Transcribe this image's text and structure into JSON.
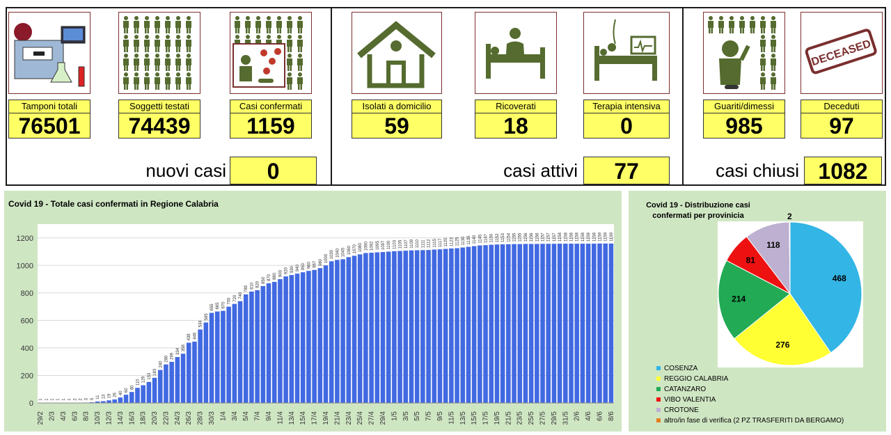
{
  "cards": [
    {
      "label": "Tamponi totali",
      "value": "76501",
      "icon": "lab-equipment-icon"
    },
    {
      "label": "Soggetti testati",
      "value": "74439",
      "icon": "people-grid-icon"
    },
    {
      "label": "Casi confermati",
      "value": "1159",
      "icon": "virus-person-icon"
    },
    {
      "label": "Isolati a domicilio",
      "value": "59",
      "icon": "house-icon"
    },
    {
      "label": "Ricoverati",
      "value": "18",
      "icon": "hospital-bed-icon"
    },
    {
      "label": "Terapia intensiva",
      "value": "0",
      "icon": "intensive-care-icon"
    },
    {
      "label": "Guariti/dimessi",
      "value": "985",
      "icon": "recovered-person-icon"
    },
    {
      "label": "Deceduti",
      "value": "97",
      "icon": "deceased-stamp-icon"
    }
  ],
  "deceased_stamp_text": "DECEASED",
  "summaries": [
    {
      "label": "nuovi casi",
      "value": "0"
    },
    {
      "label": "casi attivi",
      "value": "77"
    },
    {
      "label": "casi chiusi",
      "value": "1082"
    }
  ],
  "colors": {
    "accent_yellow": "#ffff66",
    "icon_green": "#556b2f",
    "bar_blue": "#4169e1",
    "panel_bg": "#cfe6c3"
  },
  "chart_data": [
    {
      "type": "bar",
      "title": "Covid 19 - Totale casi confermati in Regione Calabria",
      "xlabel": "",
      "ylabel": "",
      "ylim": [
        0,
        1300
      ],
      "yticks": [
        0,
        200,
        400,
        600,
        800,
        1000,
        1200
      ],
      "grid": true,
      "categories": [
        "29/2",
        "1/3",
        "2/3",
        "3/3",
        "4/3",
        "5/3",
        "6/3",
        "7/3",
        "8/3",
        "9/3",
        "10/3",
        "11/3",
        "12/3",
        "13/3",
        "14/3",
        "15/3",
        "16/3",
        "17/3",
        "18/3",
        "19/3",
        "20/3",
        "21/3",
        "22/3",
        "23/3",
        "24/3",
        "25/3",
        "26/3",
        "27/3",
        "28/3",
        "29/3",
        "30/3",
        "31/3",
        "1/4",
        "2/4",
        "3/4",
        "4/4",
        "5/4",
        "6/4",
        "7/4",
        "8/4",
        "9/4",
        "10/4",
        "11/4",
        "12/4",
        "13/4",
        "14/4",
        "15/4",
        "16/4",
        "17/4",
        "18/4",
        "19/4",
        "20/4",
        "21/4",
        "22/4",
        "23/4",
        "24/4",
        "25/4",
        "26/4",
        "27/4",
        "28/4",
        "29/4",
        "30/4",
        "1/5",
        "2/5",
        "3/5",
        "4/5",
        "5/5",
        "6/5",
        "7/5",
        "8/5",
        "9/5",
        "10/5",
        "11/5",
        "12/5",
        "13/5",
        "14/5",
        "15/5",
        "16/5",
        "17/5",
        "18/5",
        "19/5",
        "20/5",
        "21/5",
        "22/5",
        "23/5",
        "24/5",
        "25/5",
        "26/5",
        "27/5",
        "28/5",
        "29/5",
        "30/5",
        "31/5",
        "1/6",
        "2/6",
        "3/6",
        "4/6",
        "5/6",
        "6/6",
        "7/6",
        "8/6"
      ],
      "xtick_labels": [
        "29/2",
        "2/3",
        "4/3",
        "6/3",
        "8/3",
        "10/3",
        "12/3",
        "14/3",
        "16/3",
        "18/3",
        "20/3",
        "22/3",
        "24/3",
        "26/3",
        "28/3",
        "30/3",
        "1/4",
        "3/4",
        "5/4",
        "7/4",
        "9/4",
        "11/4",
        "13/4",
        "15/4",
        "17/4",
        "19/4",
        "21/4",
        "23/4",
        "25/4",
        "27/4",
        "29/4",
        "1/5",
        "3/5",
        "5/5",
        "7/5",
        "9/5",
        "11/5",
        "13/5",
        "15/5",
        "17/5",
        "19/5",
        "21/5",
        "23/5",
        "25/5",
        "27/5",
        "29/5",
        "31/5",
        "2/6",
        "4/6",
        "6/6",
        "8/6"
      ],
      "values": [
        1,
        1,
        1,
        1,
        1,
        1,
        2,
        2,
        3,
        5,
        11,
        13,
        19,
        26,
        40,
        60,
        80,
        110,
        129,
        153,
        183,
        240,
        280,
        299,
        334,
        358,
        438,
        446,
        534,
        585,
        655,
        665,
        670,
        700,
        720,
        740,
        789,
        810,
        820,
        850,
        870,
        880,
        900,
        920,
        930,
        940,
        950,
        960,
        967,
        980,
        1000,
        1030,
        1040,
        1045,
        1060,
        1070,
        1080,
        1090,
        1092,
        1095,
        1097,
        1100,
        1103,
        1105,
        1107,
        1109,
        1110,
        1111,
        1112,
        1115,
        1117,
        1120,
        1123,
        1125,
        1130,
        1135,
        1140,
        1145,
        1147,
        1150,
        1152,
        1153,
        1154,
        1155,
        1155,
        1156,
        1156,
        1156,
        1157,
        1157,
        1157,
        1158,
        1158,
        1158,
        1158,
        1158,
        1158,
        1158,
        1159,
        1159,
        1159
      ]
    },
    {
      "type": "pie",
      "title": "Covid 19 - Distribuzione casi confermati per provinicia",
      "categories": [
        "COSENZA",
        "REGGIO CALABRIA",
        "CATANZARO",
        "VIBO VALENTIA",
        "CROTONE",
        "altro/in fase di verifica (2 PZ TRASFERITI DA BERGAMO)"
      ],
      "values": [
        468,
        276,
        214,
        81,
        118,
        2
      ],
      "colors": [
        "#33b5e5",
        "#ffff33",
        "#22aa55",
        "#ee1111",
        "#bdb0d0",
        "#e67e22"
      ],
      "legend_position": "bottom"
    }
  ]
}
